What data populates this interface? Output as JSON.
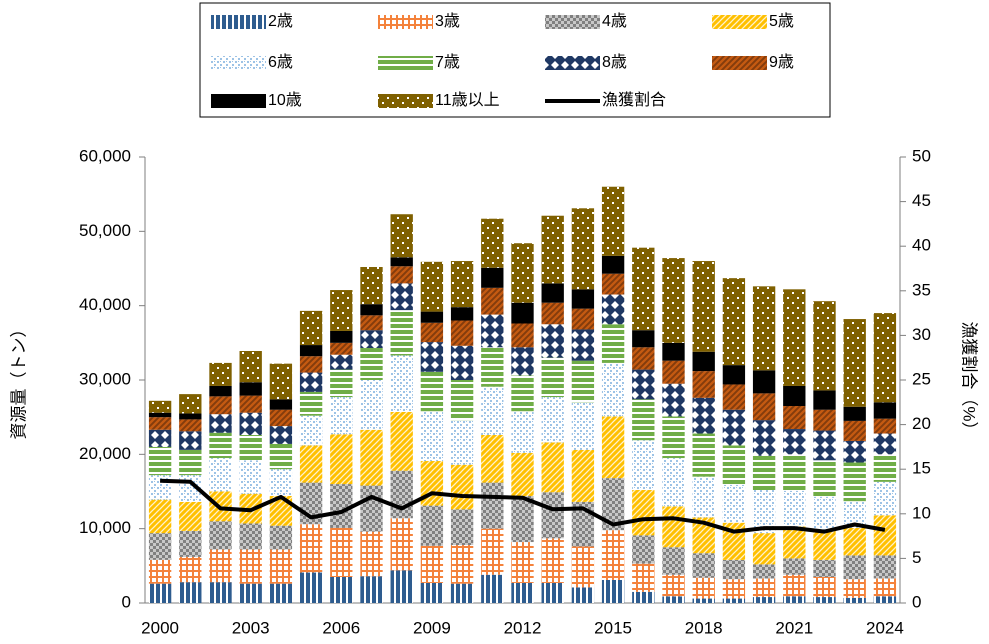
{
  "chart_data": {
    "type": "stacked_bar_line",
    "categories": [
      "2000",
      null,
      null,
      "2003",
      null,
      null,
      "2006",
      null,
      null,
      "2009",
      null,
      null,
      "2012",
      null,
      null,
      "2015",
      null,
      null,
      "2018",
      null,
      null,
      "2021",
      null,
      null,
      "2024"
    ],
    "y_label": "資源量（トン）",
    "y2_label": "漁獲割合（%）",
    "ylim": [
      0,
      60000
    ],
    "yticks": [
      0,
      {
        "value": 10000,
        "label": "10,000"
      },
      {
        "value": 20000,
        "label": "20,000"
      },
      {
        "value": 30000,
        "label": "30,000"
      },
      {
        "value": 40000,
        "label": "40,000"
      },
      {
        "value": 50000,
        "label": "50,000"
      },
      {
        "value": 60000,
        "label": "60,000"
      }
    ],
    "y2lim": [
      0,
      50
    ],
    "y2ticks": [
      0,
      5,
      10,
      15,
      20,
      25,
      30,
      35,
      40,
      45,
      50
    ],
    "series": [
      {
        "name": "2歳",
        "color": "#2e5c8f",
        "values": [
          2600,
          2800,
          2800,
          2600,
          2600,
          4100,
          3500,
          3600,
          4400,
          2700,
          2600,
          3800,
          2700,
          2700,
          2100,
          3100,
          1500,
          900,
          600,
          600,
          800,
          900,
          800,
          700,
          900
        ]
      },
      {
        "name": "3歳",
        "color": "#f4823b",
        "values": [
          3200,
          3400,
          4400,
          4600,
          4600,
          6500,
          6600,
          6000,
          7000,
          5000,
          5200,
          6200,
          5500,
          6000,
          5500,
          6700,
          3800,
          2900,
          2800,
          2600,
          2500,
          2900,
          2700,
          2500,
          2400
        ]
      },
      {
        "name": "4歳",
        "color": "#808080",
        "values": [
          3600,
          3500,
          3800,
          3500,
          3200,
          5600,
          5900,
          6200,
          6400,
          5400,
          4800,
          6200,
          6200,
          6200,
          6000,
          7000,
          3800,
          3700,
          3300,
          2600,
          1900,
          2200,
          2300,
          3200,
          3100
        ]
      },
      {
        "name": "5歳",
        "color": "#ffc000",
        "values": [
          4500,
          3900,
          4000,
          4000,
          4000,
          5000,
          6700,
          7500,
          7900,
          6000,
          6000,
          6400,
          5800,
          6700,
          7000,
          8300,
          6100,
          5500,
          4800,
          5000,
          4200,
          4300,
          4100,
          3700,
          5400
        ]
      },
      {
        "name": "6歳",
        "color": "#9dc3e6",
        "values": [
          3300,
          3600,
          4500,
          4500,
          3600,
          4000,
          5000,
          6700,
          7600,
          6700,
          6000,
          6500,
          5600,
          6100,
          6400,
          7200,
          6700,
          6500,
          5500,
          5100,
          5800,
          4800,
          4400,
          3600,
          4500
        ]
      },
      {
        "name": "7歳",
        "color": "#70ad47",
        "values": [
          3800,
          3400,
          3400,
          3400,
          3400,
          3200,
          3700,
          4300,
          6100,
          5300,
          5400,
          5300,
          4800,
          5300,
          5600,
          5200,
          5500,
          5600,
          5800,
          5300,
          4600,
          4900,
          4900,
          5200,
          3700
        ]
      },
      {
        "name": "8歳",
        "color": "#1f3864",
        "values": [
          2300,
          2500,
          2500,
          3000,
          2400,
          2600,
          2000,
          2400,
          3600,
          4000,
          4600,
          4400,
          3800,
          4500,
          4200,
          4000,
          4000,
          4400,
          4800,
          4800,
          4800,
          3400,
          4000,
          2900,
          2800
        ]
      },
      {
        "name": "9歳",
        "color": "#c55a11",
        "values": [
          1700,
          1600,
          2400,
          2300,
          2200,
          2200,
          1600,
          2000,
          2300,
          2600,
          3400,
          3600,
          3200,
          2900,
          2800,
          2800,
          3000,
          3100,
          3600,
          3400,
          3600,
          3100,
          2800,
          2700,
          2000
        ]
      },
      {
        "name": "10歳",
        "color": "#000000",
        "values": [
          600,
          800,
          1400,
          1800,
          1400,
          1500,
          1600,
          1500,
          1200,
          1500,
          1800,
          2700,
          2800,
          2600,
          2600,
          2400,
          2300,
          2400,
          2600,
          2600,
          3100,
          2700,
          2600,
          1900,
          2200
        ]
      },
      {
        "name": "11歳以上",
        "color": "#7f6000",
        "values": [
          1600,
          2600,
          3100,
          4200,
          4800,
          4600,
          5500,
          5000,
          5800,
          6700,
          6200,
          6600,
          8000,
          9100,
          10900,
          9300,
          11100,
          11400,
          12200,
          11700,
          11300,
          13000,
          12000,
          11800,
          12000
        ]
      },
      {
        "name": "漁獲割合",
        "color": "#000000",
        "type": "line",
        "axis": "y2",
        "values": [
          13.7,
          13.6,
          10.6,
          10.4,
          11.9,
          9.6,
          10.2,
          11.9,
          10.6,
          12.3,
          12.0,
          11.9,
          11.8,
          10.5,
          10.6,
          8.8,
          9.4,
          9.5,
          9.0,
          8.0,
          8.4,
          8.4,
          8.0,
          8.8,
          8.2
        ]
      }
    ]
  }
}
